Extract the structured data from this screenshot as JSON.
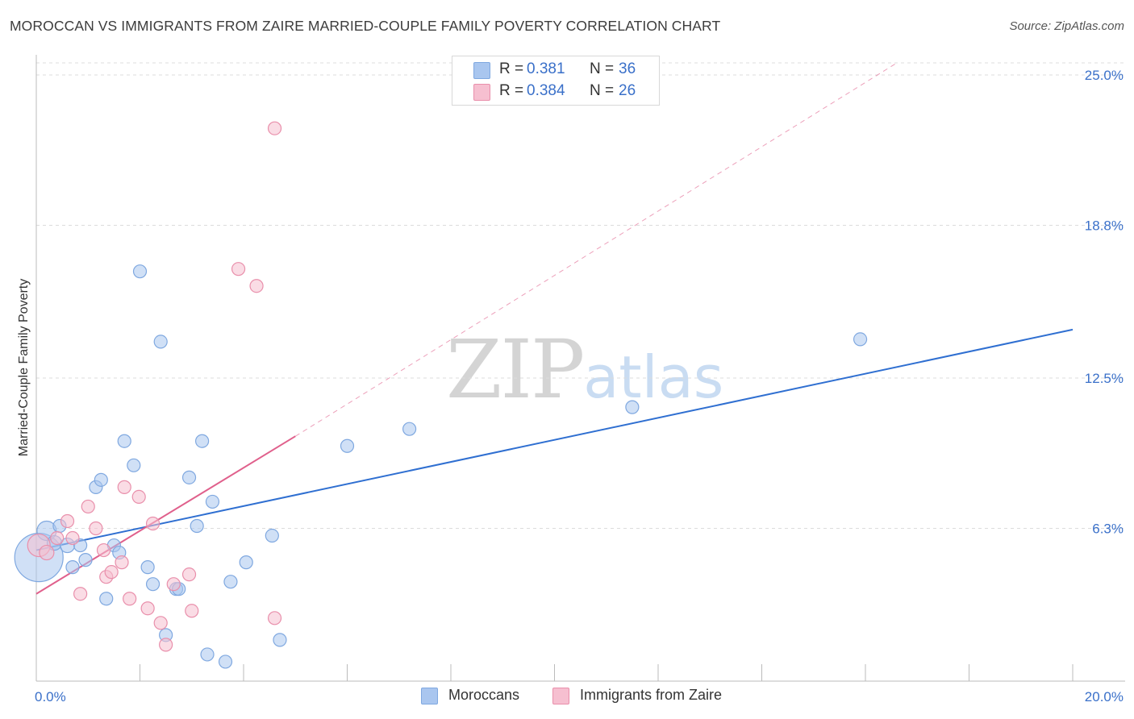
{
  "title": "MOROCCAN VS IMMIGRANTS FROM ZAIRE MARRIED-COUPLE FAMILY POVERTY CORRELATION CHART",
  "source": "Source: ZipAtlas.com",
  "watermark": {
    "zip": "ZIP",
    "atlas": "atlas"
  },
  "legend": {
    "rows": [
      {
        "r_label": "R =",
        "r_value": "0.381",
        "n_label": "N =",
        "n_value": "36",
        "color": "#a9c6ef",
        "border": "#7fa8e0"
      },
      {
        "r_label": "R =",
        "r_value": "0.384",
        "n_label": "N =",
        "n_value": "26",
        "color": "#f6bfd0",
        "border": "#e98fab"
      }
    ]
  },
  "bottom_legend": [
    {
      "label": "Moroccans",
      "color": "#a9c6ef",
      "border": "#7fa8e0"
    },
    {
      "label": "Immigrants from Zaire",
      "color": "#f6bfd0",
      "border": "#e98fab"
    }
  ],
  "chart_data": {
    "type": "scatter",
    "title": "MOROCCAN VS IMMIGRANTS FROM ZAIRE MARRIED-COUPLE FAMILY POVERTY CORRELATION CHART",
    "xlabel": "",
    "ylabel": "Married-Couple Family Poverty",
    "xlim": [
      0,
      20
    ],
    "ylim": [
      0,
      25.5
    ],
    "x_tick_labels": [
      "0.0%",
      "20.0%"
    ],
    "x_tick_values": [
      0,
      20
    ],
    "x_minor_ticks": [
      0,
      2,
      4,
      6,
      8,
      10,
      12,
      14,
      16,
      18,
      20
    ],
    "y_ticks": [
      {
        "value": 6.3,
        "label": "6.3%"
      },
      {
        "value": 12.5,
        "label": "12.5%"
      },
      {
        "value": 18.8,
        "label": "18.8%"
      },
      {
        "value": 25.0,
        "label": "25.0%"
      }
    ],
    "grid": true,
    "series": [
      {
        "name": "Moroccans",
        "color": "#7fa8e0",
        "fill": "#a9c6ef",
        "line_color": "#2f6fd1",
        "trend": {
          "x": [
            0,
            20
          ],
          "y": [
            5.4,
            14.5
          ],
          "style": "solid"
        },
        "points": [
          [
            0.05,
            5.1,
            30
          ],
          [
            0.2,
            6.2,
            12
          ],
          [
            0.35,
            5.7,
            9
          ],
          [
            0.45,
            6.4,
            8
          ],
          [
            0.6,
            5.6,
            9
          ],
          [
            0.7,
            4.7,
            8
          ],
          [
            0.85,
            5.6,
            8
          ],
          [
            0.95,
            5.0,
            8
          ],
          [
            1.15,
            8.0,
            8
          ],
          [
            1.25,
            8.3,
            8
          ],
          [
            1.35,
            3.4,
            8
          ],
          [
            1.5,
            5.6,
            8
          ],
          [
            1.6,
            5.3,
            8
          ],
          [
            1.7,
            9.9,
            8
          ],
          [
            1.88,
            8.9,
            8
          ],
          [
            2.0,
            16.9,
            8
          ],
          [
            2.15,
            4.7,
            8
          ],
          [
            2.25,
            4.0,
            8
          ],
          [
            2.4,
            14.0,
            8
          ],
          [
            2.5,
            1.9,
            8
          ],
          [
            2.7,
            3.8,
            8
          ],
          [
            2.75,
            3.8,
            8
          ],
          [
            2.95,
            8.4,
            8
          ],
          [
            3.1,
            6.4,
            8
          ],
          [
            3.2,
            9.9,
            8
          ],
          [
            3.3,
            1.1,
            8
          ],
          [
            3.4,
            7.4,
            8
          ],
          [
            3.65,
            0.8,
            8
          ],
          [
            3.75,
            4.1,
            8
          ],
          [
            4.05,
            4.9,
            8
          ],
          [
            4.55,
            6.0,
            8
          ],
          [
            4.7,
            1.7,
            8
          ],
          [
            6.0,
            9.7,
            8
          ],
          [
            7.2,
            10.4,
            8
          ],
          [
            11.5,
            11.3,
            8
          ],
          [
            15.9,
            14.1,
            8
          ]
        ]
      },
      {
        "name": "Immigrants from Zaire",
        "color": "#e98fab",
        "fill": "#f6bfd0",
        "line_color": "#e0608c",
        "trend": {
          "x": [
            0,
            5.0
          ],
          "y": [
            3.6,
            10.1
          ],
          "style": "solid"
        },
        "trend_extension": {
          "x": [
            5.0,
            20
          ],
          "y": [
            10.1,
            30.0
          ],
          "style": "dashed"
        },
        "points": [
          [
            0.05,
            5.6,
            14
          ],
          [
            0.2,
            5.3,
            9
          ],
          [
            0.4,
            5.9,
            8
          ],
          [
            0.6,
            6.6,
            8
          ],
          [
            0.7,
            5.9,
            8
          ],
          [
            0.85,
            3.6,
            8
          ],
          [
            1.0,
            7.2,
            8
          ],
          [
            1.15,
            6.3,
            8
          ],
          [
            1.3,
            5.4,
            8
          ],
          [
            1.35,
            4.3,
            8
          ],
          [
            1.45,
            4.5,
            8
          ],
          [
            1.65,
            4.9,
            8
          ],
          [
            1.7,
            8.0,
            8
          ],
          [
            1.8,
            3.4,
            8
          ],
          [
            1.98,
            7.6,
            8
          ],
          [
            2.15,
            3.0,
            8
          ],
          [
            2.25,
            6.5,
            8
          ],
          [
            2.4,
            2.4,
            8
          ],
          [
            2.5,
            1.5,
            8
          ],
          [
            2.65,
            4.0,
            8
          ],
          [
            2.95,
            4.4,
            8
          ],
          [
            3.0,
            2.9,
            8
          ],
          [
            3.9,
            17.0,
            8
          ],
          [
            4.25,
            16.3,
            8
          ],
          [
            4.6,
            2.6,
            8
          ],
          [
            4.6,
            22.8,
            8
          ]
        ]
      }
    ]
  }
}
